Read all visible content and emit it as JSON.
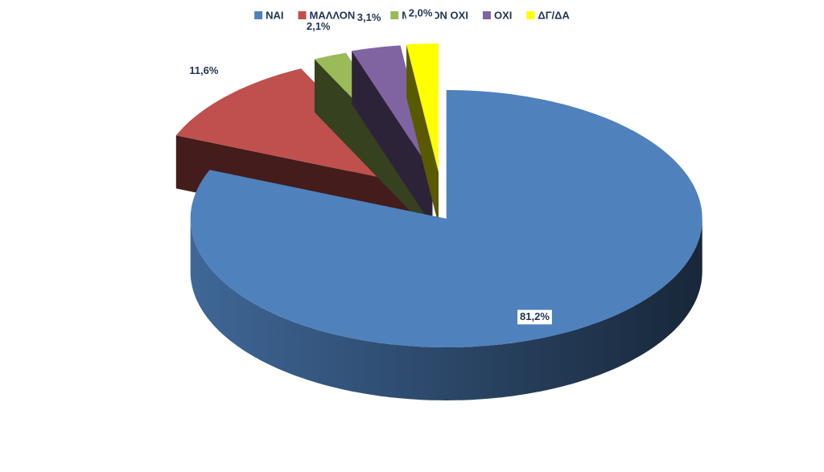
{
  "chart_data": {
    "type": "pie",
    "categories": [
      "ΝΑΙ",
      "ΜΑΛΛΟΝ ΝΑΙ",
      "ΜΑΛΛΟΝ ΟΧΙ",
      "ΟΧΙ",
      "ΔΓ/ΔΑ"
    ],
    "values": [
      81.2,
      11.6,
      2.1,
      3.1,
      2.0
    ],
    "value_labels": [
      "81,2%",
      "11,6%",
      "2,1%",
      "3,1%",
      "2,0%"
    ],
    "colors": [
      "#4f81bd",
      "#c0504d",
      "#9bbb59",
      "#8064a2",
      "#ffff00"
    ],
    "legend": "top"
  }
}
